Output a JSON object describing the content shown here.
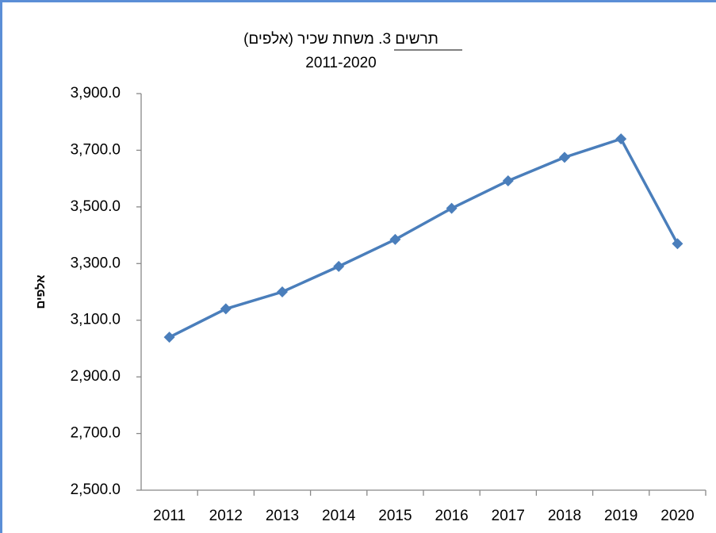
{
  "chart_data": {
    "type": "line",
    "title": "תרשים 3. משחת שכיר (אלפים)",
    "subtitle": "2011-2020",
    "y_label": "אלפים",
    "categories": [
      "2011",
      "2012",
      "2013",
      "2014",
      "2015",
      "2016",
      "2017",
      "2018",
      "2019",
      "2020"
    ],
    "series": [
      {
        "color": "#4a7ebb",
        "values": [
          3040,
          3140,
          3200,
          3290,
          3385,
          3495,
          3592,
          3675,
          3740,
          3370
        ]
      }
    ],
    "ylim": [
      2500,
      3900
    ],
    "yticks": [
      {
        "value": 2500,
        "label": "2,500.0"
      },
      {
        "value": 2700,
        "label": "2,700.0"
      },
      {
        "value": 2900,
        "label": "2,900.0"
      },
      {
        "value": 3100,
        "label": "3,100.0"
      },
      {
        "value": 3300,
        "label": "3,300.0"
      },
      {
        "value": 3500,
        "label": "3,500.0"
      },
      {
        "value": 3700,
        "label": "3,700.0"
      },
      {
        "value": 3900,
        "label": "3,900.0"
      }
    ],
    "grid": false
  }
}
